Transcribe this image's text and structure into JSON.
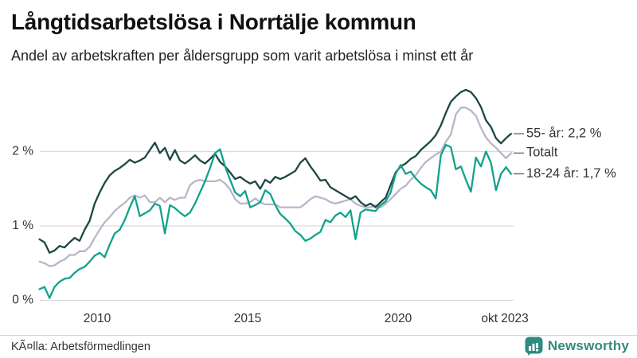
{
  "header": {
    "title": "Långtidsarbetslösa i Norrtälje kommun",
    "subtitle": "Andel av arbetskraften per åldersgrupp som varit arbetslösa i minst ett år"
  },
  "footer": {
    "source": "KÃ¤lla: Arbetsförmedlingen",
    "brand": "Newsworthy"
  },
  "colors": {
    "series_55": "#1c4742",
    "series_totalt": "#bab6c8",
    "series_1824": "#12a28c",
    "gridline": "#d9d9d9",
    "axis_text": "#333333",
    "brand_teal": "#35897d"
  },
  "chart_data": {
    "type": "line",
    "unit": "%",
    "x_start": "2008-02",
    "x_end": "2023-10",
    "x_step_months": 2,
    "x_tick_labels": [
      "2010",
      "2015",
      "2020",
      "okt 2023"
    ],
    "x_tick_indices": [
      11.5,
      41.5,
      71.5,
      94
    ],
    "y_tick_labels": [
      "0 %",
      "1 %",
      "2 %"
    ],
    "y_tick_values": [
      0,
      1,
      2
    ],
    "ylim": [
      0,
      2.95
    ],
    "grid": "horizontal",
    "legend_position": "right-of-line-ends",
    "series": [
      {
        "name": "Totalt",
        "end_label": "Totalt",
        "color": "#bab6c8",
        "values": [
          0.52,
          0.5,
          0.46,
          0.47,
          0.52,
          0.55,
          0.61,
          0.61,
          0.66,
          0.66,
          0.72,
          0.84,
          0.95,
          1.05,
          1.12,
          1.2,
          1.26,
          1.31,
          1.38,
          1.41,
          1.38,
          1.41,
          1.32,
          1.32,
          1.38,
          1.32,
          1.38,
          1.35,
          1.38,
          1.38,
          1.55,
          1.6,
          1.62,
          1.6,
          1.6,
          1.6,
          1.62,
          1.57,
          1.49,
          1.36,
          1.3,
          1.3,
          1.32,
          1.37,
          1.32,
          1.29,
          1.29,
          1.29,
          1.25,
          1.25,
          1.25,
          1.25,
          1.25,
          1.3,
          1.36,
          1.4,
          1.38,
          1.36,
          1.32,
          1.3,
          1.32,
          1.34,
          1.36,
          1.3,
          1.27,
          1.25,
          1.25,
          1.28,
          1.25,
          1.3,
          1.36,
          1.43,
          1.5,
          1.54,
          1.62,
          1.68,
          1.78,
          1.86,
          1.91,
          1.96,
          2.0,
          2.13,
          2.23,
          2.5,
          2.59,
          2.59,
          2.55,
          2.48,
          2.32,
          2.19,
          2.11,
          2.05,
          1.98,
          1.91,
          1.98
        ]
      },
      {
        "name": "55- år",
        "end_label": "55- år: 2,2 %",
        "color": "#1c4742",
        "values": [
          0.82,
          0.78,
          0.64,
          0.67,
          0.73,
          0.71,
          0.78,
          0.84,
          0.8,
          0.95,
          1.07,
          1.3,
          1.45,
          1.58,
          1.68,
          1.74,
          1.78,
          1.83,
          1.89,
          1.85,
          1.88,
          1.92,
          2.02,
          2.12,
          1.98,
          2.05,
          1.89,
          2.02,
          1.88,
          1.84,
          1.89,
          1.95,
          1.88,
          1.84,
          1.9,
          1.97,
          1.86,
          1.8,
          1.72,
          1.63,
          1.66,
          1.61,
          1.57,
          1.6,
          1.5,
          1.62,
          1.58,
          1.66,
          1.63,
          1.66,
          1.7,
          1.74,
          1.85,
          1.91,
          1.8,
          1.71,
          1.61,
          1.62,
          1.52,
          1.48,
          1.44,
          1.4,
          1.36,
          1.4,
          1.32,
          1.27,
          1.3,
          1.25,
          1.32,
          1.38,
          1.55,
          1.72,
          1.8,
          1.84,
          1.9,
          1.94,
          2.02,
          2.08,
          2.14,
          2.22,
          2.35,
          2.52,
          2.67,
          2.74,
          2.8,
          2.83,
          2.8,
          2.72,
          2.6,
          2.42,
          2.33,
          2.18,
          2.11,
          2.18,
          2.24
        ]
      },
      {
        "name": "18-24 år",
        "end_label": "18-24 år: 1,7 %",
        "color": "#12a28c",
        "values": [
          0.15,
          0.18,
          0.03,
          0.18,
          0.25,
          0.29,
          0.3,
          0.37,
          0.42,
          0.45,
          0.52,
          0.6,
          0.64,
          0.58,
          0.75,
          0.9,
          0.95,
          1.08,
          1.25,
          1.4,
          1.13,
          1.17,
          1.21,
          1.3,
          1.27,
          0.9,
          1.28,
          1.24,
          1.18,
          1.13,
          1.18,
          1.3,
          1.45,
          1.6,
          1.78,
          1.98,
          2.03,
          1.8,
          1.62,
          1.45,
          1.4,
          1.47,
          1.25,
          1.28,
          1.32,
          1.48,
          1.43,
          1.28,
          1.16,
          1.1,
          1.03,
          0.93,
          0.88,
          0.8,
          0.83,
          0.88,
          0.92,
          1.08,
          1.05,
          1.14,
          1.18,
          1.12,
          1.21,
          0.82,
          1.18,
          1.22,
          1.21,
          1.2,
          1.28,
          1.33,
          1.45,
          1.7,
          1.82,
          1.7,
          1.73,
          1.64,
          1.57,
          1.52,
          1.48,
          1.37,
          1.95,
          2.09,
          2.06,
          1.76,
          1.8,
          1.62,
          1.46,
          1.92,
          1.8,
          2.0,
          1.85,
          1.48,
          1.7,
          1.79,
          1.7
        ]
      }
    ]
  }
}
